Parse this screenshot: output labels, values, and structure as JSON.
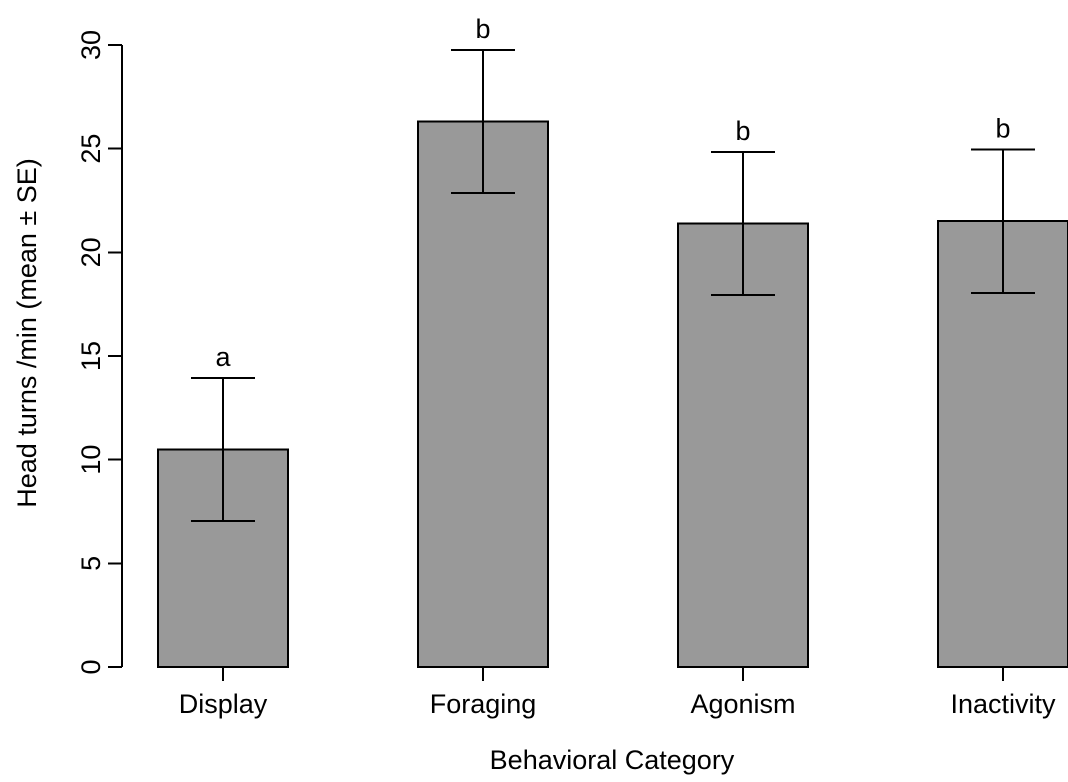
{
  "chart_data": {
    "type": "bar",
    "categories": [
      "Display",
      "Foraging",
      "Agonism",
      "Inactivity"
    ],
    "values": [
      10.5,
      26.3,
      21.4,
      21.5
    ],
    "errors": [
      3.45,
      3.45,
      3.45,
      3.45
    ],
    "significance_labels": [
      "a",
      "b",
      "b",
      "b"
    ],
    "xlabel": "Behavioral Category",
    "ylabel": "Head turns /min (mean ± SE)",
    "ylim": [
      0,
      30
    ],
    "yticks": [
      0,
      5,
      10,
      15,
      20,
      25,
      30
    ],
    "bar_color": "#999999",
    "grid": false,
    "legend": "none"
  }
}
